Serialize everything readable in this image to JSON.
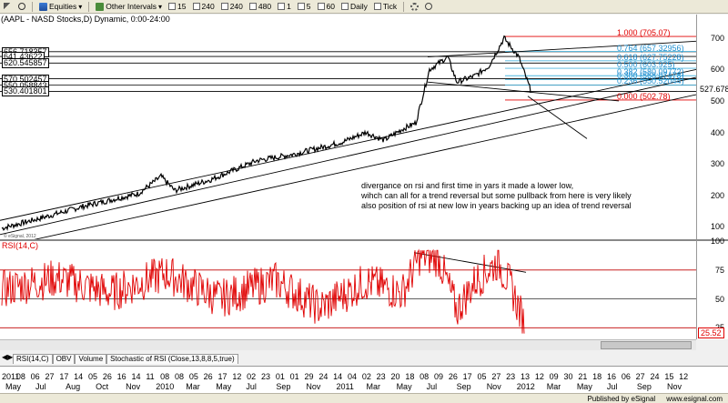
{
  "toolbar": {
    "items": [
      {
        "label": "Equities",
        "icon": "equities-icon"
      },
      {
        "label": "Other Intervals",
        "icon": "intervals-icon"
      },
      {
        "label": "15"
      },
      {
        "label": "240"
      },
      {
        "label": "240"
      },
      {
        "label": "480"
      },
      {
        "label": "1"
      },
      {
        "label": "5"
      },
      {
        "label": "60"
      },
      {
        "label": "Daily"
      },
      {
        "label": "Tick"
      }
    ]
  },
  "chart_title": "(AAPL - NASD Stocks,D) Dynamic, 0:00-24:00",
  "price_axis": {
    "ticks": [
      "700",
      "600",
      "500",
      "400",
      "300",
      "200",
      "100"
    ],
    "last_price": "527.678"
  },
  "levels": [
    {
      "label": "656.718357"
    },
    {
      "label": "641.43622"
    },
    {
      "label": "620.545857"
    },
    {
      "label": "570.502457"
    },
    {
      "label": "550.058843"
    },
    {
      "label": "530.401801"
    }
  ],
  "fib_levels": [
    {
      "label": "1.000 (705.07)",
      "color": "#e00000"
    },
    {
      "label": "0.764 (657.32956)",
      "color": "#1f8fd0"
    },
    {
      "label": "0.618 (627.75228)",
      "color": "#1f8fd0"
    },
    {
      "label": "0.500 (603.925)",
      "color": "#1f8fd0"
    },
    {
      "label": "0.382 (580.09772)",
      "color": "#1f8fd0"
    },
    {
      "label": "0.300 (568.07478)",
      "color": "#1f8fd0"
    },
    {
      "label": "0.236 (550.52044)",
      "color": "#1f8fd0"
    },
    {
      "label": "0.000 (502.78)",
      "color": "#e00000"
    }
  ],
  "annotation": [
    "divergance on rsi and first time in yars it made a lower low,",
    "wihch can all for a trend reversal but some pullback from here is very likely",
    "also position of rsi at new low in years backing up an idea of trend reversal"
  ],
  "watermark": "© eSignal, 2012",
  "rsi": {
    "label": "RSI(14,C)",
    "ticks": [
      "100",
      "75",
      "50",
      "25"
    ],
    "last_value": "25.52"
  },
  "tabs": [
    "RSI(14,C)",
    "OBV",
    "Volume",
    "Stochastic of RSI (Close,13,8,8,5,true)"
  ],
  "xaxis": {
    "row1": [
      "2011",
      "08",
      "06",
      "27",
      "17",
      "14",
      "05",
      "26",
      "16",
      "14",
      "11",
      "08",
      "08",
      "05",
      "26",
      "17",
      "12",
      "02",
      "23",
      "01",
      "01",
      "29",
      "24",
      "14",
      "04",
      "02",
      "23",
      "20",
      "18",
      "08",
      "09",
      "26",
      "17",
      "05",
      "27",
      "23",
      "13",
      "12",
      "09",
      "30",
      "21",
      "18",
      "16",
      "06",
      "27",
      "24",
      "15",
      "12"
    ],
    "row2": [
      "May",
      "Jul",
      "Aug",
      "Oct",
      "Nov",
      "2010",
      "Mar",
      "May",
      "Jul",
      "Sep",
      "Nov",
      "2011",
      "Mar",
      "May",
      "Jul",
      "Sep",
      "Nov",
      "2012",
      "Mar",
      "May",
      "Jul",
      "Sep",
      "Nov"
    ]
  },
  "status": {
    "published": "Published by eSignal",
    "url": "www.esignal.com"
  },
  "chart_data": {
    "type": "line",
    "title": "(AAPL - NASD Stocks,D) Dynamic, 0:00-24:00",
    "price_series": {
      "name": "AAPL",
      "x": [
        "2009-03",
        "2009-06",
        "2009-09",
        "2009-12",
        "2010-03",
        "2010-06",
        "2010-09",
        "2010-12",
        "2011-03",
        "2011-06",
        "2011-09",
        "2011-12",
        "2012-01",
        "2012-02",
        "2012-03",
        "2012-04",
        "2012-05",
        "2012-06",
        "2012-07",
        "2012-08",
        "2012-09",
        "2012-10",
        "2012-11"
      ],
      "values": [
        95,
        140,
        170,
        200,
        225,
        260,
        280,
        320,
        350,
        330,
        390,
        400,
        420,
        500,
        600,
        630,
        560,
        580,
        600,
        650,
        700,
        620,
        527
      ]
    },
    "rsi_series": {
      "name": "RSI(14,C)",
      "values": [
        60,
        72,
        55,
        66,
        48,
        70,
        58,
        62,
        45,
        68,
        52,
        60,
        70,
        88,
        85,
        60,
        55,
        62,
        70,
        78,
        80,
        45,
        25.52
      ]
    },
    "ylim_price": [
      60,
      740
    ],
    "ylim_rsi": [
      15,
      100
    ]
  }
}
